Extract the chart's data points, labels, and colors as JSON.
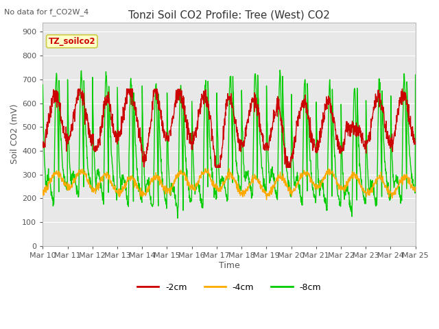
{
  "title": "Tonzi Soil CO2 Profile: Tree (West) CO2",
  "subtitle": "No data for f_CO2W_4",
  "xlabel": "Time",
  "ylabel": "Soil CO2 (mV)",
  "ylim": [
    0,
    940
  ],
  "yticks": [
    0,
    100,
    200,
    300,
    400,
    500,
    600,
    700,
    800,
    900
  ],
  "legend_entries": [
    "-2cm",
    "-4cm",
    "-8cm"
  ],
  "legend_colors": [
    "#cc0000",
    "#ffaa00",
    "#00cc00"
  ],
  "plot_bg_color": "#e8e8e8",
  "fig_bg_color": "#ffffff",
  "title_fontsize": 11,
  "axis_label_fontsize": 9,
  "tick_label_fontsize": 8,
  "legend_box_color": "#ffffcc",
  "legend_box_edge": "#cccc44",
  "sensor_label": "TZ_soilco2",
  "x_tick_days": [
    10,
    11,
    12,
    13,
    14,
    15,
    16,
    17,
    18,
    19,
    20,
    21,
    22,
    23,
    24,
    25
  ]
}
